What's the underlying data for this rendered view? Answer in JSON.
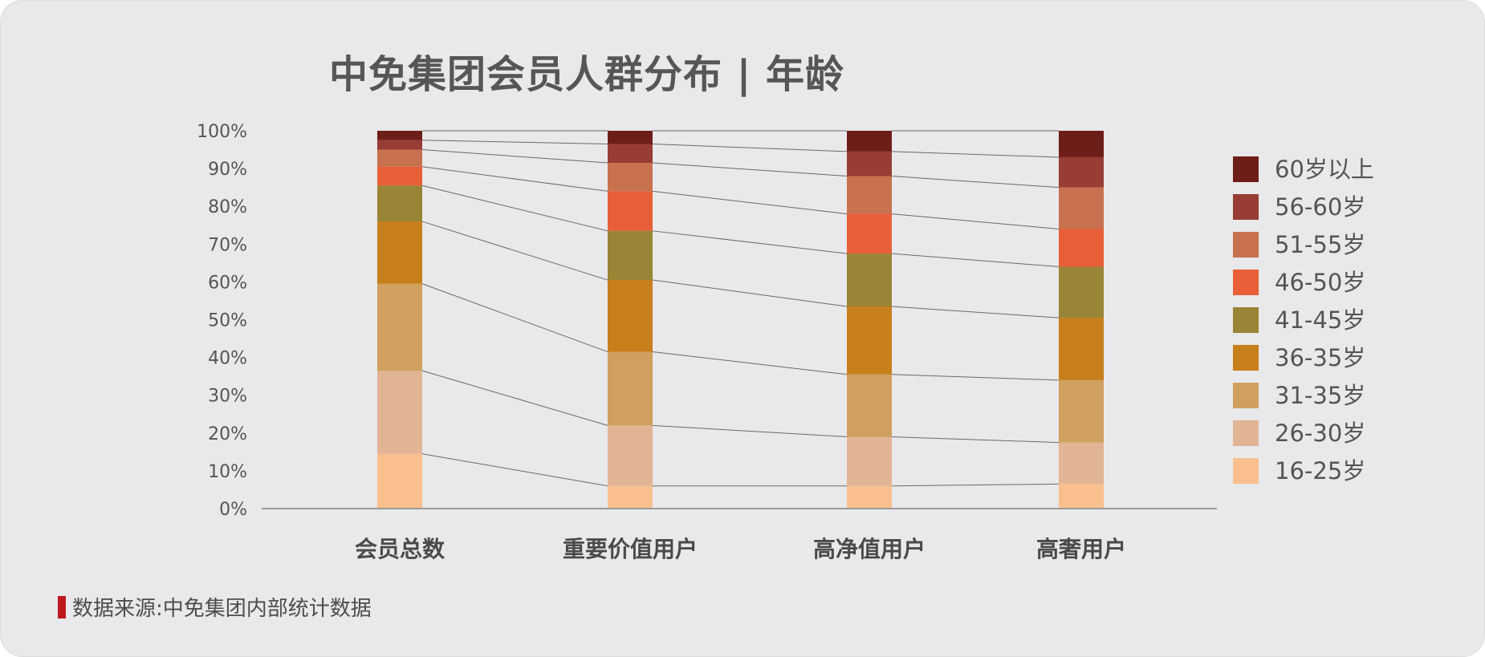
{
  "source": {
    "text": "数据来源:中免集团内部统计数据",
    "marker_color": "#c0181f"
  },
  "chart_data": {
    "type": "bar",
    "stacked": true,
    "title": "中免集团会员人群分布 | 年龄",
    "xlabel": "",
    "ylabel": "",
    "ylim": [
      0,
      100
    ],
    "y_ticks": [
      "0%",
      "10%",
      "20%",
      "30%",
      "40%",
      "50%",
      "60%",
      "70%",
      "80%",
      "90%",
      "100%"
    ],
    "grid": false,
    "legend_position": "right",
    "categories": [
      "会员总数",
      "重要价值用户",
      "高净值用户",
      "高奢用户"
    ],
    "series": [
      {
        "name": "16-25岁",
        "color": "#f9c08e",
        "values": [
          14.5,
          6,
          6,
          6.5
        ]
      },
      {
        "name": "26-30岁",
        "color": "#e1b494",
        "values": [
          22,
          16,
          13,
          11
        ]
      },
      {
        "name": "31-35岁",
        "color": "#d0a05e",
        "values": [
          23,
          19.5,
          16.5,
          16.5
        ]
      },
      {
        "name": "36-35岁",
        "color": "#c67f1b",
        "values": [
          16.5,
          19,
          18,
          16.5
        ]
      },
      {
        "name": "41-45岁",
        "color": "#998536",
        "values": [
          9.5,
          13,
          14,
          13.5
        ]
      },
      {
        "name": "46-50岁",
        "color": "#e85f37",
        "values": [
          5,
          10.5,
          10.5,
          10
        ]
      },
      {
        "name": "51-55岁",
        "color": "#c8714f",
        "values": [
          4.5,
          7.5,
          10,
          11
        ]
      },
      {
        "name": "56-60岁",
        "color": "#973d34",
        "values": [
          2.5,
          5,
          6.5,
          8
        ]
      },
      {
        "name": "60岁以上",
        "color": "#6e1e19",
        "values": [
          2.5,
          3.5,
          5.5,
          7
        ]
      }
    ]
  }
}
